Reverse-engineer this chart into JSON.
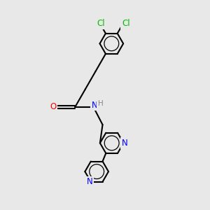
{
  "background_color": "#e8e8e8",
  "bond_color": "#000000",
  "bond_width": 1.5,
  "atom_colors": {
    "Cl": "#00bb00",
    "N": "#0000ff",
    "O": "#ff0000",
    "H": "#888888",
    "C": "#000000"
  },
  "font_size": 8.5,
  "font_size_cl": 8.5
}
